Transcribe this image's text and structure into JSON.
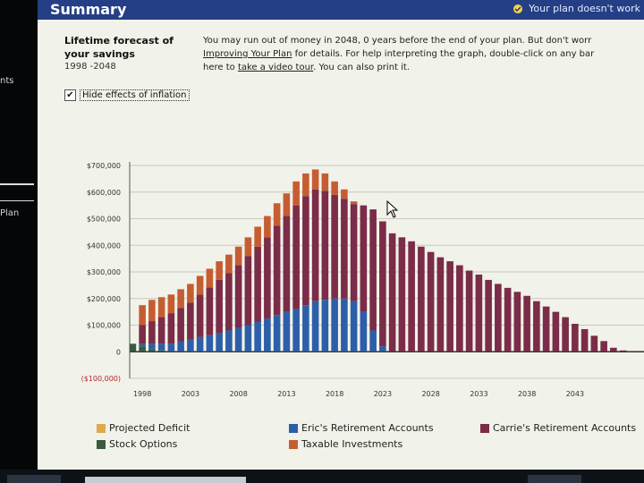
{
  "header": {
    "title": "Summary",
    "status": "Your plan doesn't work"
  },
  "left_nav": {
    "items": [
      "nts",
      "Plan"
    ]
  },
  "panel": {
    "title": "Lifetime forecast of your savings",
    "range": "1998 -2048",
    "description_lines": [
      [
        "You may run out of money in 2048, 0 years before the end of your plan. But don't worr"
      ],
      [
        "Improving Your Plan",
        " for details. For help interpreting the graph, double-click on any bar"
      ],
      [
        "here to ",
        "take a video tour",
        ". You can also print it."
      ]
    ],
    "hide_inflation_label": "Hide effects of inflation",
    "hide_inflation_checked": "✔"
  },
  "chart_data": {
    "type": "bar",
    "stacked": true,
    "ylim": [
      -100000,
      700000
    ],
    "y_ticks": [
      700000,
      600000,
      500000,
      400000,
      300000,
      200000,
      100000,
      0,
      -100000
    ],
    "y_tick_labels": [
      "$700,000",
      "$600,000",
      "$500,000",
      "$400,000",
      "$300,000",
      "$200,000",
      "$100,000",
      "0",
      "($100,000)"
    ],
    "x_tick_labels": [
      "1998",
      "2003",
      "2008",
      "2013",
      "2018",
      "2023",
      "2028",
      "2033",
      "2038",
      "2043"
    ],
    "grid": true,
    "years": [
      1997,
      1998,
      1999,
      2000,
      2001,
      2002,
      2003,
      2004,
      2005,
      2006,
      2007,
      2008,
      2009,
      2010,
      2011,
      2012,
      2013,
      2014,
      2015,
      2016,
      2017,
      2018,
      2019,
      2020,
      2021,
      2022,
      2023,
      2024,
      2025,
      2026,
      2027,
      2028,
      2029,
      2030,
      2031,
      2032,
      2033,
      2034,
      2035,
      2036,
      2037,
      2038,
      2039,
      2040,
      2041,
      2042,
      2043,
      2044,
      2045,
      2046,
      2047,
      2048
    ],
    "series": [
      {
        "name": "Stock Options",
        "color": "#3a5a40",
        "values": [
          30000,
          20000,
          10000,
          5000,
          0,
          0,
          0,
          0,
          0,
          0,
          0,
          0,
          0,
          0,
          0,
          0,
          0,
          0,
          0,
          0,
          0,
          0,
          0,
          0,
          0,
          0,
          0,
          0,
          0,
          0,
          0,
          0,
          0,
          0,
          0,
          0,
          0,
          0,
          0,
          0,
          0,
          0,
          0,
          0,
          0,
          0,
          0,
          0,
          0,
          0,
          0,
          0
        ]
      },
      {
        "name": "Eric's Retirement Accounts",
        "color": "#2d5fa8",
        "values": [
          0,
          10000,
          20000,
          25000,
          30000,
          38000,
          45000,
          55000,
          62000,
          70000,
          80000,
          90000,
          100000,
          112000,
          125000,
          138000,
          150000,
          160000,
          175000,
          190000,
          195000,
          200000,
          200000,
          190000,
          150000,
          80000,
          20000,
          0,
          0,
          0,
          0,
          0,
          0,
          0,
          0,
          0,
          0,
          0,
          0,
          0,
          0,
          0,
          0,
          0,
          0,
          0,
          0,
          0,
          0,
          0,
          0,
          0
        ]
      },
      {
        "name": "Carrie's Retirement Accounts",
        "color": "#7a2c48",
        "values": [
          0,
          70000,
          85000,
          100000,
          115000,
          127000,
          140000,
          160000,
          180000,
          200000,
          215000,
          235000,
          260000,
          283000,
          305000,
          335000,
          360000,
          390000,
          410000,
          420000,
          410000,
          390000,
          375000,
          365000,
          400000,
          455000,
          470000,
          445000,
          430000,
          415000,
          395000,
          375000,
          355000,
          340000,
          325000,
          305000,
          290000,
          270000,
          255000,
          240000,
          225000,
          210000,
          190000,
          170000,
          150000,
          130000,
          105000,
          85000,
          60000,
          40000,
          15000,
          5000
        ]
      },
      {
        "name": "Taxable Investments",
        "color": "#c65d32",
        "values": [
          0,
          75000,
          80000,
          75000,
          70000,
          70000,
          70000,
          70000,
          70000,
          70000,
          70000,
          70000,
          70000,
          75000,
          80000,
          85000,
          85000,
          90000,
          85000,
          75000,
          65000,
          50000,
          35000,
          10000,
          0,
          0,
          0,
          0,
          0,
          0,
          0,
          0,
          0,
          0,
          0,
          0,
          0,
          0,
          0,
          0,
          0,
          0,
          0,
          0,
          0,
          0,
          0,
          0,
          0,
          0,
          0,
          0
        ]
      },
      {
        "name": "Projected Deficit",
        "color": "#e0a84a",
        "values": [
          0,
          0,
          0,
          0,
          0,
          0,
          0,
          0,
          0,
          0,
          0,
          0,
          0,
          0,
          0,
          0,
          0,
          0,
          0,
          0,
          0,
          0,
          0,
          0,
          0,
          0,
          0,
          0,
          0,
          0,
          0,
          0,
          0,
          0,
          0,
          0,
          0,
          0,
          0,
          0,
          0,
          0,
          0,
          0,
          0,
          0,
          0,
          0,
          0,
          0,
          0,
          0
        ]
      }
    ],
    "legend_order": [
      "Projected Deficit",
      "Eric's Retirement Accounts",
      "Carrie's Retirement Accounts",
      "Stock Options",
      "Taxable Investments"
    ]
  },
  "icons": {
    "status": "check-circle-icon",
    "cursor": "mouse-pointer-icon"
  }
}
